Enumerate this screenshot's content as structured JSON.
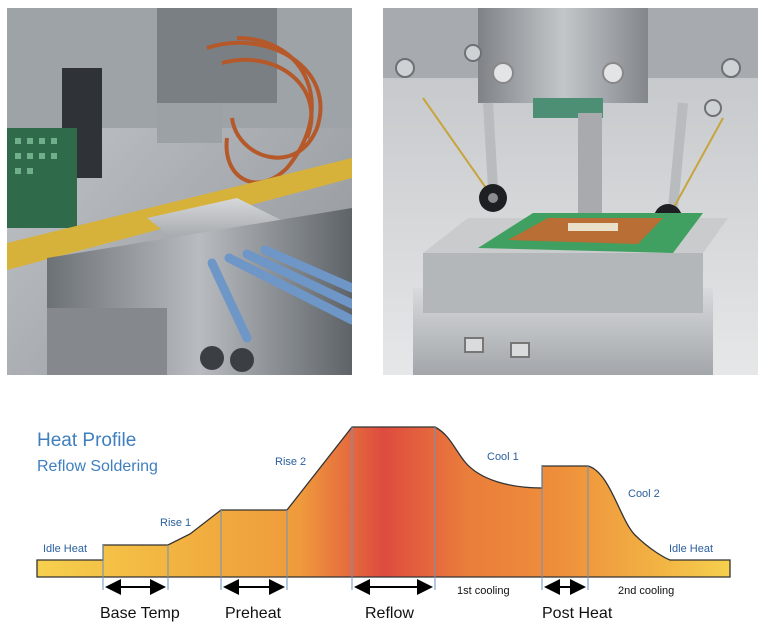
{
  "heat_profile": {
    "title": "Heat Profile",
    "subtitle": "Reflow Soldering",
    "stage_labels": {
      "idle_left": "Idle Heat",
      "rise1": "Rise 1",
      "rise2": "Rise 2",
      "cool1": "Cool 1",
      "cool2": "Cool 2",
      "idle_right": "Idle Heat"
    },
    "phases": {
      "base_temp": "Base Temp",
      "preheat": "Preheat",
      "reflow": "Reflow",
      "post_heat": "Post Heat",
      "first_cooling": "1st cooling",
      "second_cooling": "2nd cooling"
    },
    "colors": {
      "title_blue": "#3f7fbf",
      "label_blue": "#2a5f9e",
      "profile_low": "#f6d04d",
      "profile_mid": "#ef9a3c",
      "profile_peak": "#de4b3f"
    }
  },
  "photos": {
    "left": "hot-bar soldering of wires",
    "right": "hot-bar soldering of flex circuit"
  }
}
